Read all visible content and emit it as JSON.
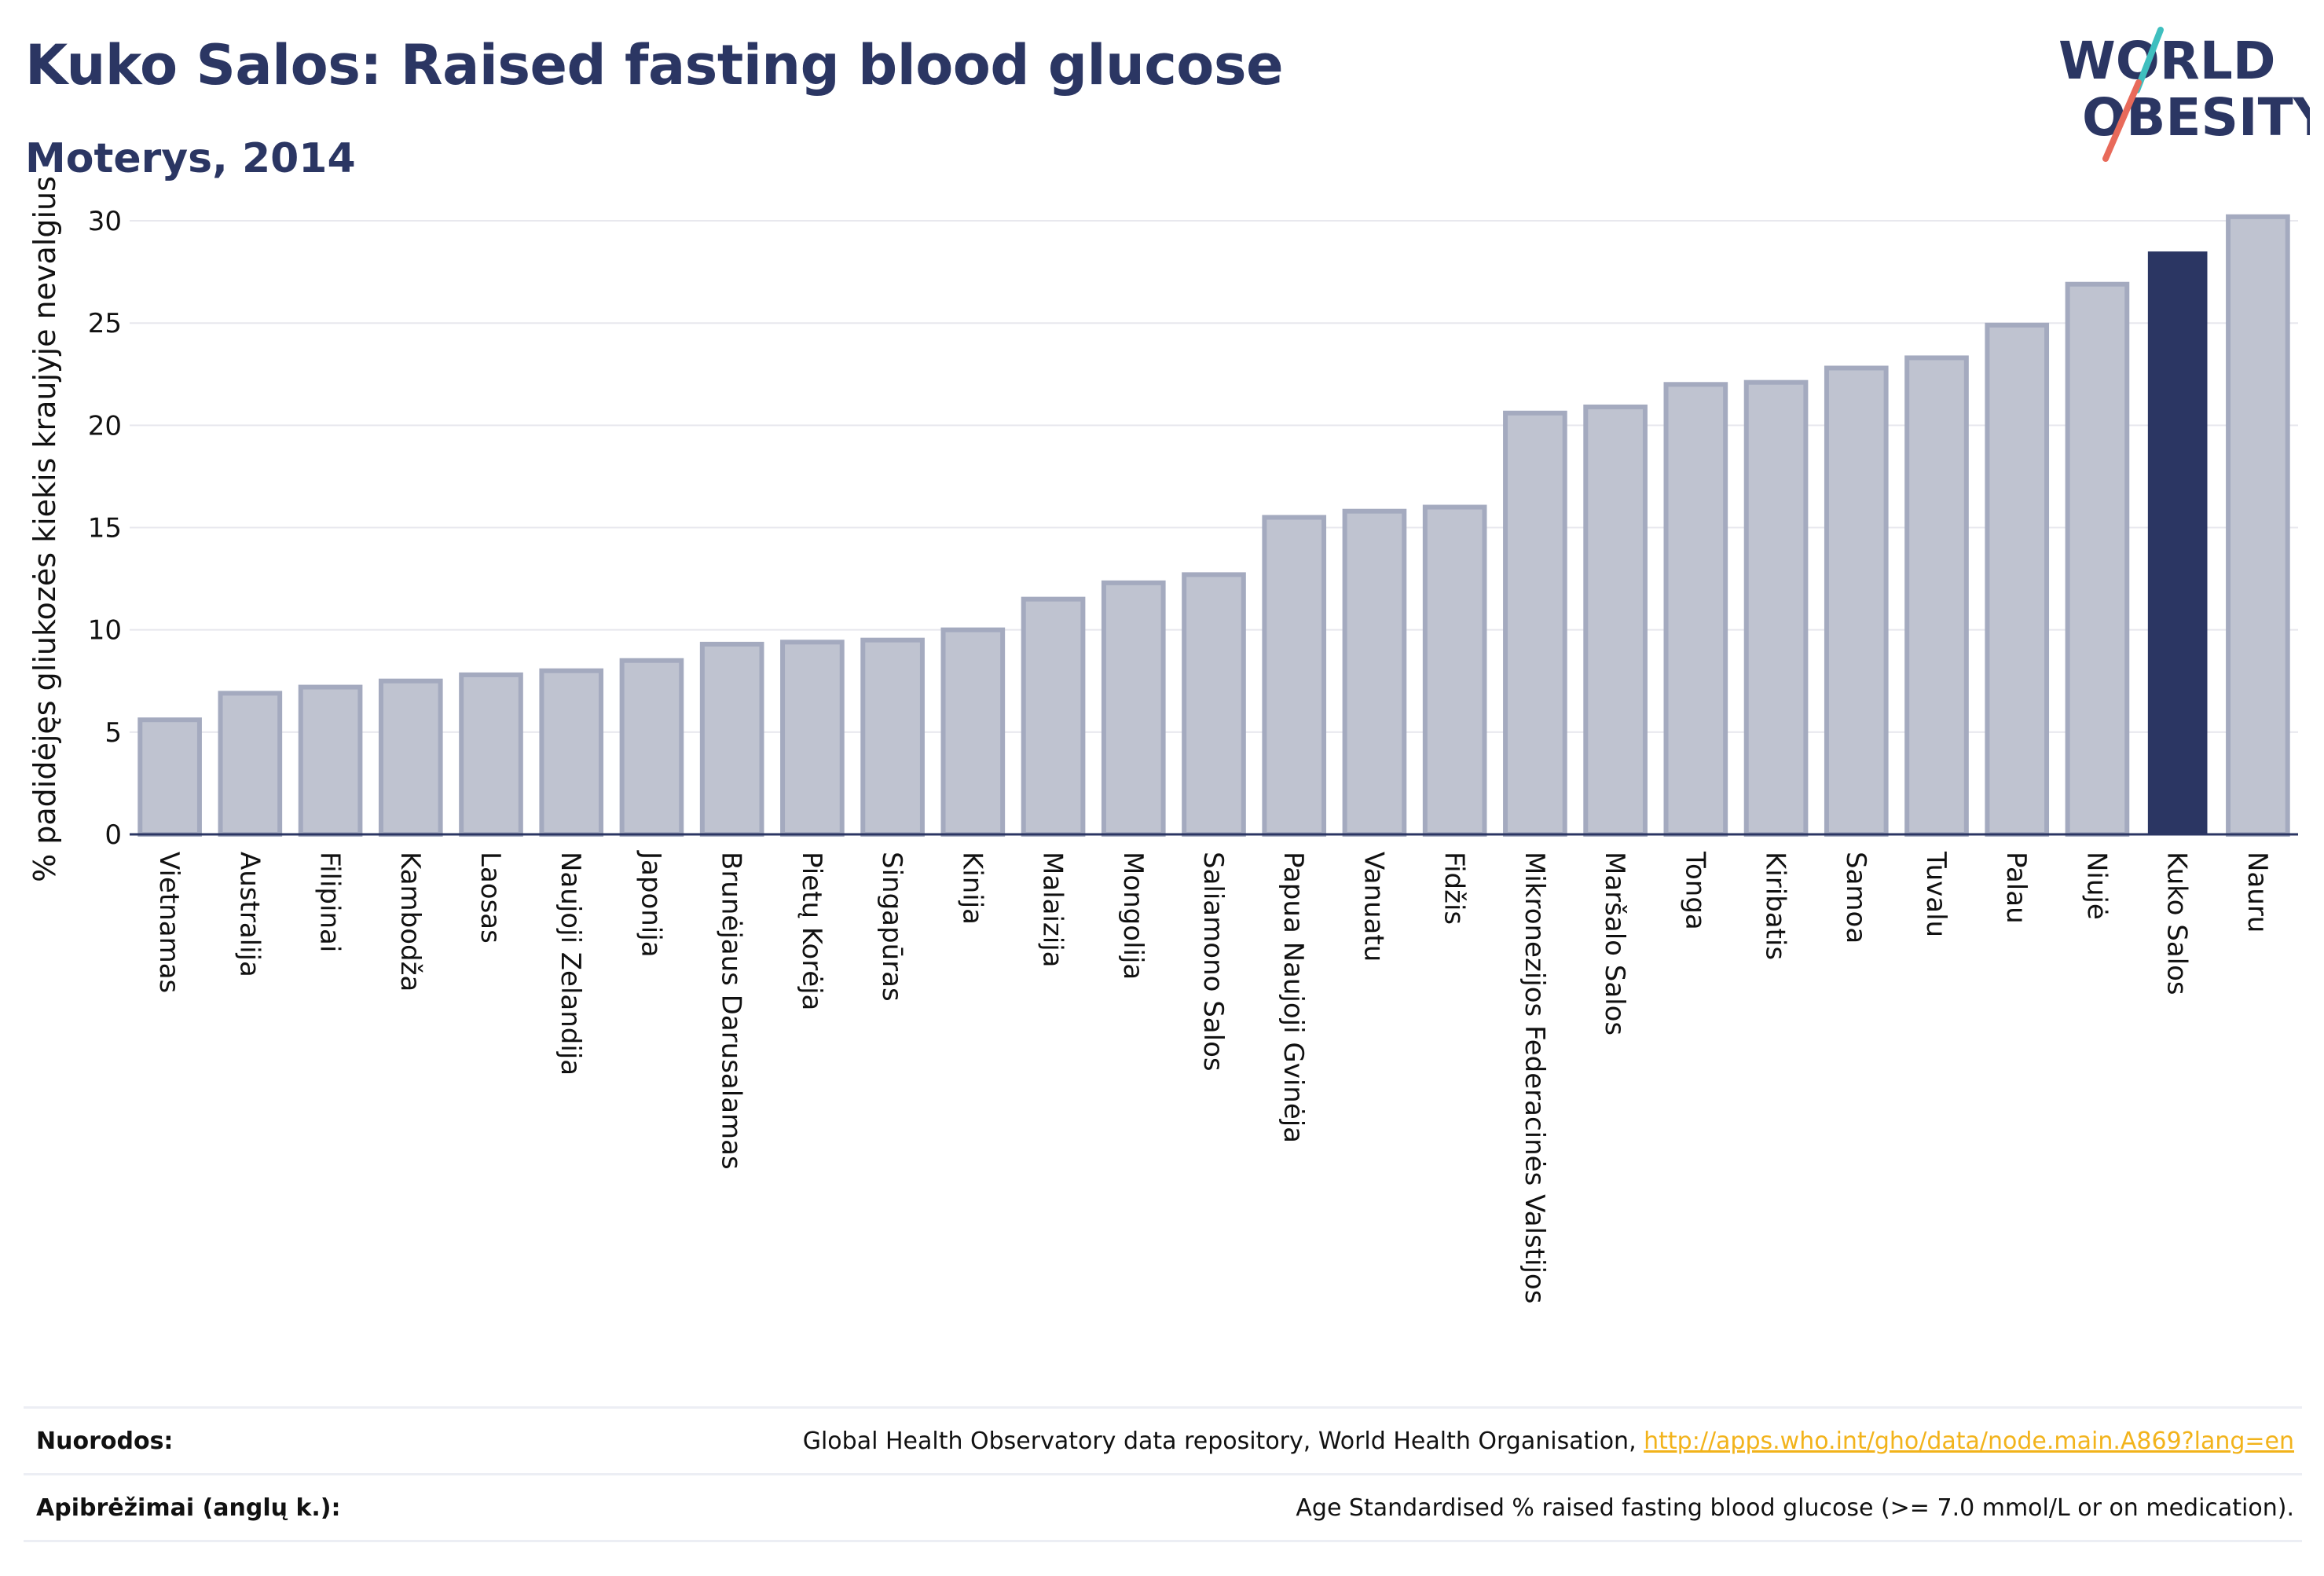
{
  "title": "Kuko Salos: Raised fasting blood glucose",
  "subtitle": "Moterys, 2014",
  "logo": {
    "line1": "WORLD",
    "line2": "OBESITY"
  },
  "colors": {
    "bar": "#bfc3d0",
    "bar_stroke": "#a4aabf",
    "highlight": "#2b3663",
    "grid": "#e8e8ee",
    "logo_text": "#2b3663",
    "logo_slash_teal": "#3fbfbf",
    "logo_slash_coral": "#e86a5a",
    "link": "#f2b31b"
  },
  "chart_data": {
    "type": "bar",
    "ylabel": "% padidėjęs gliukozės kiekis kraujyje nevalgius",
    "ylim": [
      0,
      31
    ],
    "yticks": [
      0,
      5,
      10,
      15,
      20,
      25,
      30
    ],
    "grid": true,
    "highlight": "Kuko Salos",
    "categories": [
      "Vietnamas",
      "Australija",
      "Filipinai",
      "Kambodža",
      "Laosas",
      "Naujoji Zelandija",
      "Japonija",
      "Brunėjaus Darusalamas",
      "Pietų Korėja",
      "Singapūras",
      "Kinija",
      "Malaizija",
      "Mongolija",
      "Saliamono Salos",
      "Papua Naujoji Gvinėja",
      "Vanuatu",
      "Fidžis",
      "Mikronezijos Federacinės Valstijos",
      "Maršalo Salos",
      "Tonga",
      "Kiribatis",
      "Samoa",
      "Tuvalu",
      "Palau",
      "Niujė",
      "Kuko Salos",
      "Nauru"
    ],
    "values": [
      5.6,
      6.9,
      7.2,
      7.5,
      7.8,
      8.0,
      8.5,
      9.3,
      9.4,
      9.5,
      10.0,
      11.5,
      12.3,
      12.7,
      15.5,
      15.8,
      16.0,
      20.6,
      20.9,
      22.0,
      22.1,
      22.8,
      23.3,
      24.9,
      26.9,
      28.5,
      30.2
    ]
  },
  "footer": {
    "sources_label": "Nuorodos:",
    "sources_text": "Global Health Observatory data repository, World Health Organisation, ",
    "sources_link": "http://apps.who.int/gho/data/node.main.A869?lang=en",
    "definitions_label": "Apibrėžimai (anglų k.):",
    "definitions_text": "Age Standardised % raised fasting blood glucose (>= 7.0 mmol/L or on medication)."
  }
}
